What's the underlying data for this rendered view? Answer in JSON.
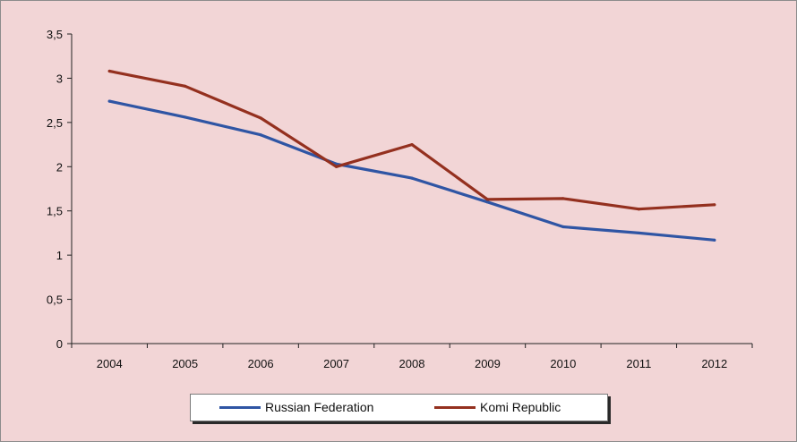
{
  "chart_data": {
    "type": "line",
    "title": "",
    "xlabel": "",
    "ylabel": "",
    "categories": [
      "2004",
      "2005",
      "2006",
      "2007",
      "2008",
      "2009",
      "2010",
      "2011",
      "2012"
    ],
    "ylim": [
      0,
      3.5
    ],
    "yticks": [
      0,
      0.5,
      1,
      1.5,
      2,
      2.5,
      3,
      3.5
    ],
    "ytick_labels": [
      "0",
      "0,5",
      "1",
      "1,5",
      "2",
      "2,5",
      "3",
      "3,5"
    ],
    "series": [
      {
        "name": "Russian Federation",
        "color": "#2f55a4",
        "values": [
          2.74,
          2.56,
          2.36,
          2.03,
          1.87,
          1.6,
          1.32,
          1.25,
          1.17
        ]
      },
      {
        "name": "Komi Republic",
        "color": "#94301f",
        "values": [
          3.08,
          2.91,
          2.55,
          2.0,
          2.25,
          1.63,
          1.64,
          1.52,
          1.57
        ]
      }
    ],
    "legend_position": "bottom",
    "grid": false
  },
  "colors": {
    "background": "#f2d5d6",
    "axis": "#222222"
  }
}
